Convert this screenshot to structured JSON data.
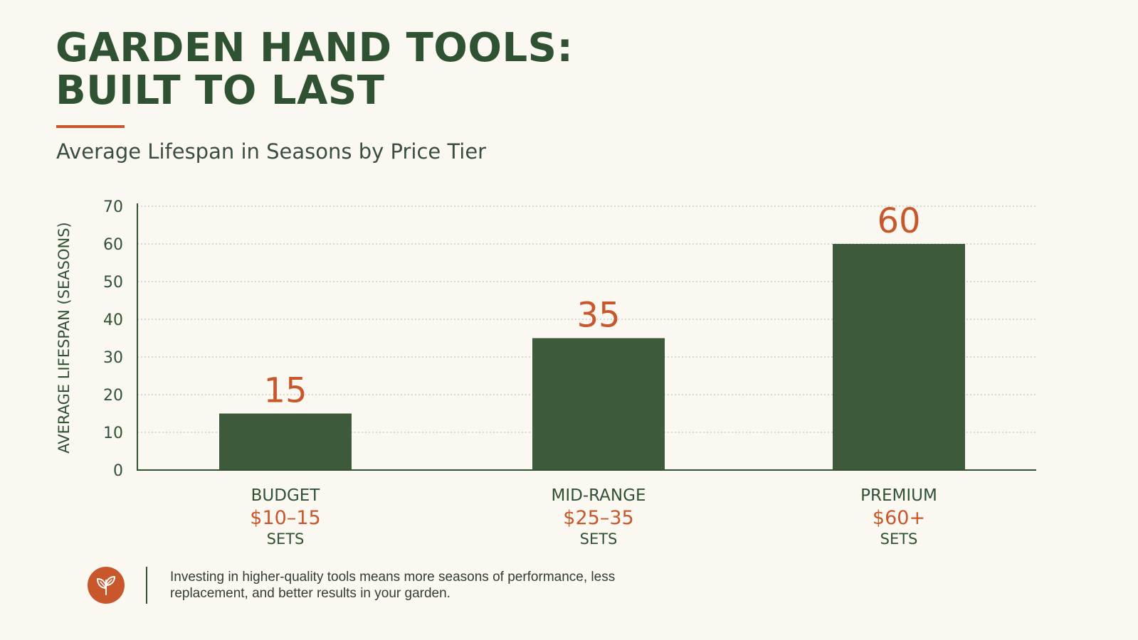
{
  "header": {
    "title_line1": "GARDEN HAND TOOLS:",
    "title_line2": "BUILT TO LAST",
    "subtitle": "Average Lifespan in Seasons by Price Tier"
  },
  "chart_data": {
    "type": "bar",
    "title": "GARDEN HAND TOOLS: BUILT TO LAST",
    "subtitle": "Average Lifespan in Seasons by Price Tier",
    "ylabel": "AVERAGE LIFESPAN (SEASONS)",
    "xlabel": "",
    "ylim": [
      0,
      70
    ],
    "yticks": [
      0,
      10,
      20,
      30,
      40,
      50,
      60,
      70
    ],
    "grid": true,
    "categories": [
      {
        "name": "BUDGET",
        "price": "$10–15",
        "unit": "SETS"
      },
      {
        "name": "MID-RANGE",
        "price": "$25–35",
        "unit": "SETS"
      },
      {
        "name": "PREMIUM",
        "price": "$60+",
        "unit": "SETS"
      }
    ],
    "values": [
      15,
      35,
      60
    ],
    "value_labels": [
      "15",
      "35",
      "60"
    ],
    "bar_color": "#3d5b3b",
    "label_color": "#c8572b"
  },
  "footer": {
    "icon": "leaf-icon",
    "note": "Investing in higher-quality tools means more seasons of performance, less replacement, and better results in your garden."
  },
  "colors": {
    "primary": "#2f5232",
    "accent": "#c8572b",
    "background": "#faf8f1"
  }
}
